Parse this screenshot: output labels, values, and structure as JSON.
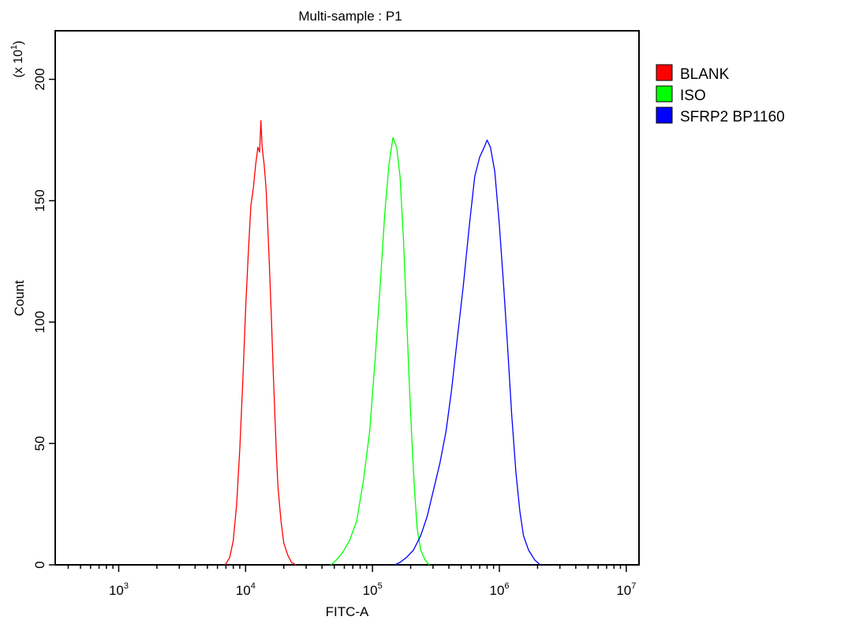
{
  "chart_data": {
    "type": "line",
    "title": "Multi-sample : P1",
    "xlabel": "FITC-A",
    "ylabel": "Count",
    "y_multiplier_label": "(x 10",
    "y_multiplier_exp": "1",
    "x_scale": "log",
    "xlim": [
      316,
      12600000
    ],
    "ylim": [
      0,
      220
    ],
    "x_ticks": [
      {
        "base": "10",
        "exp": "3",
        "value": 1000
      },
      {
        "base": "10",
        "exp": "4",
        "value": 10000
      },
      {
        "base": "10",
        "exp": "5",
        "value": 100000
      },
      {
        "base": "10",
        "exp": "6",
        "value": 1000000
      },
      {
        "base": "10",
        "exp": "7",
        "value": 10000000
      }
    ],
    "y_ticks": [
      {
        "label": "0",
        "value": 0
      },
      {
        "label": "50",
        "value": 50
      },
      {
        "label": "100",
        "value": 100
      },
      {
        "label": "150",
        "value": 150
      },
      {
        "label": "200",
        "value": 200
      }
    ],
    "grid": false,
    "legend_position": "right",
    "series": [
      {
        "name": "BLANK",
        "color": "#ff0000",
        "points": [
          [
            6900,
            0
          ],
          [
            7500,
            3
          ],
          [
            8000,
            10
          ],
          [
            8500,
            25
          ],
          [
            9000,
            48
          ],
          [
            9500,
            75
          ],
          [
            10000,
            105
          ],
          [
            10500,
            128
          ],
          [
            11000,
            148
          ],
          [
            11500,
            155
          ],
          [
            12000,
            165
          ],
          [
            12500,
            172
          ],
          [
            12900,
            170
          ],
          [
            13200,
            183
          ],
          [
            13500,
            172
          ],
          [
            14000,
            165
          ],
          [
            14500,
            155
          ],
          [
            15000,
            138
          ],
          [
            15500,
            120
          ],
          [
            16000,
            100
          ],
          [
            16500,
            80
          ],
          [
            17000,
            62
          ],
          [
            17500,
            45
          ],
          [
            18000,
            32
          ],
          [
            19000,
            18
          ],
          [
            20000,
            9
          ],
          [
            21500,
            4
          ],
          [
            23000,
            1
          ],
          [
            25000,
            0
          ]
        ]
      },
      {
        "name": "ISO",
        "color": "#00ff00",
        "points": [
          [
            47000,
            0
          ],
          [
            52000,
            2
          ],
          [
            58000,
            5
          ],
          [
            66000,
            10
          ],
          [
            75000,
            18
          ],
          [
            85000,
            35
          ],
          [
            95000,
            55
          ],
          [
            105000,
            85
          ],
          [
            115000,
            115
          ],
          [
            125000,
            145
          ],
          [
            135000,
            165
          ],
          [
            145000,
            176
          ],
          [
            155000,
            172
          ],
          [
            165000,
            160
          ],
          [
            175000,
            135
          ],
          [
            185000,
            105
          ],
          [
            195000,
            75
          ],
          [
            205000,
            50
          ],
          [
            215000,
            30
          ],
          [
            225000,
            15
          ],
          [
            240000,
            6
          ],
          [
            260000,
            2
          ],
          [
            280000,
            0
          ]
        ]
      },
      {
        "name": "SFRP2 BP1160",
        "color": "#0000ff",
        "points": [
          [
            150000,
            0
          ],
          [
            165000,
            1
          ],
          [
            185000,
            3
          ],
          [
            210000,
            6
          ],
          [
            240000,
            12
          ],
          [
            270000,
            20
          ],
          [
            300000,
            30
          ],
          [
            340000,
            42
          ],
          [
            380000,
            55
          ],
          [
            420000,
            72
          ],
          [
            470000,
            95
          ],
          [
            520000,
            115
          ],
          [
            580000,
            140
          ],
          [
            640000,
            160
          ],
          [
            700000,
            168
          ],
          [
            760000,
            172
          ],
          [
            800000,
            175
          ],
          [
            850000,
            172
          ],
          [
            920000,
            162
          ],
          [
            1000000,
            140
          ],
          [
            1080000,
            115
          ],
          [
            1160000,
            90
          ],
          [
            1250000,
            62
          ],
          [
            1350000,
            38
          ],
          [
            1450000,
            22
          ],
          [
            1550000,
            12
          ],
          [
            1700000,
            6
          ],
          [
            1900000,
            2
          ],
          [
            2100000,
            0
          ]
        ]
      }
    ]
  }
}
